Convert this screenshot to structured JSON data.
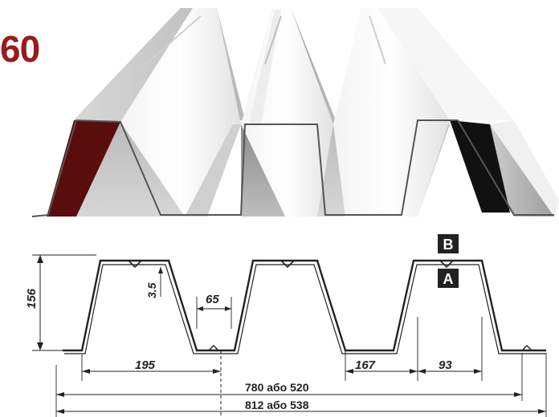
{
  "profile": {
    "title": "60"
  },
  "dimensions": {
    "height_total": "156",
    "depth_small": "3.5",
    "bottom_rib_width": "65",
    "half_pitch": "195",
    "pitch": "167",
    "top_width": "93",
    "effective_width": "780 або 520",
    "total_width": "812 або 538"
  },
  "side_labels": {
    "top": "B",
    "bottom": "A"
  },
  "colors": {
    "title": "#9a1b1b",
    "badge_bg": "#222222",
    "badge_text": "#ffffff",
    "line": "#222222"
  }
}
